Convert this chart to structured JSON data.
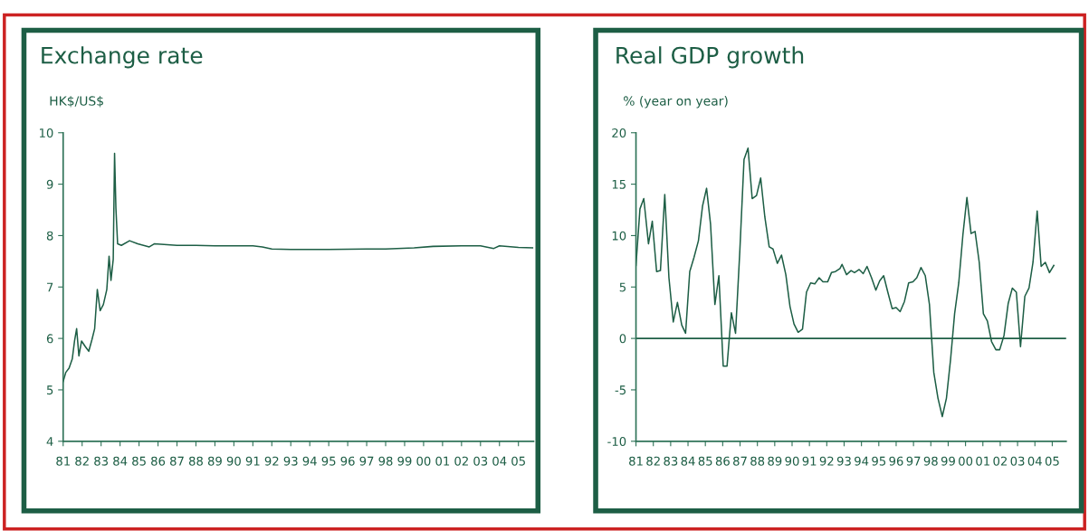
{
  "chart_data": [
    {
      "type": "line",
      "title": "Exchange rate",
      "ylabel": "HK$/US$",
      "xlim": [
        1981,
        2005.8
      ],
      "ylim": [
        4,
        10
      ],
      "yticks": [
        4,
        5,
        6,
        7,
        8,
        9,
        10
      ],
      "xticks": [
        {
          "value": 1981,
          "label": "81"
        },
        {
          "value": 1982,
          "label": "82"
        },
        {
          "value": 1983,
          "label": "83"
        },
        {
          "value": 1984,
          "label": "84"
        },
        {
          "value": 1985,
          "label": "85"
        },
        {
          "value": 1986,
          "label": "86"
        },
        {
          "value": 1987,
          "label": "87"
        },
        {
          "value": 1988,
          "label": "88"
        },
        {
          "value": 1989,
          "label": "89"
        },
        {
          "value": 1990,
          "label": "90"
        },
        {
          "value": 1991,
          "label": "91"
        },
        {
          "value": 1992,
          "label": "92"
        },
        {
          "value": 1993,
          "label": "93"
        },
        {
          "value": 1994,
          "label": "94"
        },
        {
          "value": 1995,
          "label": "95"
        },
        {
          "value": 1996,
          "label": "96"
        },
        {
          "value": 1997,
          "label": "97"
        },
        {
          "value": 1998,
          "label": "98"
        },
        {
          "value": 1999,
          "label": "99"
        },
        {
          "value": 2000,
          "label": "00"
        },
        {
          "value": 2001,
          "label": "01"
        },
        {
          "value": 2002,
          "label": "02"
        },
        {
          "value": 2003,
          "label": "03"
        },
        {
          "value": 2004,
          "label": "04"
        },
        {
          "value": 2005,
          "label": "05"
        }
      ],
      "grid": false,
      "legend": false,
      "marker": "none",
      "line_style": "solid",
      "series": [
        {
          "color": "#1d5e45",
          "x": [
            1981.0,
            1981.14,
            1981.31,
            1981.48,
            1981.6,
            1981.71,
            1981.83,
            1981.97,
            1982.17,
            1982.35,
            1982.52,
            1982.66,
            1982.8,
            1982.95,
            1983.12,
            1983.3,
            1983.42,
            1983.52,
            1983.64,
            1983.71,
            1983.78,
            1983.87,
            1984.07,
            1984.5,
            1984.93,
            1985.54,
            1985.8,
            1987.0,
            1988.0,
            1989.0,
            1990.0,
            1991.0,
            1991.5,
            1992.0,
            1993.0,
            1995.0,
            1997.0,
            1998.0,
            1999.5,
            2000.5,
            2002.0,
            2003.0,
            2003.7,
            2004.0,
            2005.0,
            2005.75
          ],
          "values": [
            5.16,
            5.34,
            5.42,
            5.6,
            5.95,
            6.19,
            5.66,
            5.95,
            5.84,
            5.75,
            5.98,
            6.19,
            6.95,
            6.54,
            6.66,
            6.95,
            7.6,
            7.13,
            7.54,
            9.6,
            8.54,
            7.84,
            7.81,
            7.9,
            7.84,
            7.78,
            7.84,
            7.81,
            7.81,
            7.8,
            7.8,
            7.8,
            7.78,
            7.74,
            7.73,
            7.73,
            7.74,
            7.74,
            7.76,
            7.79,
            7.8,
            7.8,
            7.75,
            7.8,
            7.77,
            7.76
          ]
        }
      ]
    },
    {
      "type": "line",
      "title": "Real GDP growth",
      "ylabel": "% (year on year)",
      "xlim": [
        1981,
        2005.8
      ],
      "ylim": [
        -10,
        20
      ],
      "yticks": [
        -10,
        -5,
        0,
        5,
        10,
        15,
        20
      ],
      "xticks": [
        {
          "value": 1981,
          "label": "81"
        },
        {
          "value": 1982,
          "label": "82"
        },
        {
          "value": 1983,
          "label": "83"
        },
        {
          "value": 1984,
          "label": "84"
        },
        {
          "value": 1985,
          "label": "85"
        },
        {
          "value": 1986,
          "label": "86"
        },
        {
          "value": 1987,
          "label": "87"
        },
        {
          "value": 1988,
          "label": "88"
        },
        {
          "value": 1989,
          "label": "89"
        },
        {
          "value": 1990,
          "label": "90"
        },
        {
          "value": 1991,
          "label": "91"
        },
        {
          "value": 1992,
          "label": "92"
        },
        {
          "value": 1993,
          "label": "93"
        },
        {
          "value": 1994,
          "label": "94"
        },
        {
          "value": 1995,
          "label": "95"
        },
        {
          "value": 1996,
          "label": "96"
        },
        {
          "value": 1997,
          "label": "97"
        },
        {
          "value": 1998,
          "label": "98"
        },
        {
          "value": 1999,
          "label": "99"
        },
        {
          "value": 2000,
          "label": "00"
        },
        {
          "value": 2001,
          "label": "01"
        },
        {
          "value": 2002,
          "label": "02"
        },
        {
          "value": 2003,
          "label": "03"
        },
        {
          "value": 2004,
          "label": "04"
        },
        {
          "value": 2005,
          "label": "05"
        }
      ],
      "grid": false,
      "legend": false,
      "marker": "none",
      "line_style": "solid",
      "ref_lines": [
        {
          "axis": "y",
          "value": 0,
          "label": null,
          "color": "#1d5e45"
        }
      ],
      "series": [
        {
          "color": "#1d5e45",
          "x": [
            1981.0,
            1981.23,
            1981.45,
            1981.72,
            1981.94,
            1982.19,
            1982.41,
            1982.66,
            1982.9,
            1983.15,
            1983.39,
            1983.64,
            1983.86,
            1984.1,
            1984.35,
            1984.6,
            1984.84,
            1985.07,
            1985.3,
            1985.55,
            1985.78,
            1986.03,
            1986.25,
            1986.5,
            1986.74,
            1986.99,
            1987.23,
            1987.46,
            1987.7,
            1987.95,
            1988.19,
            1988.43,
            1988.68,
            1988.9,
            1989.15,
            1989.39,
            1989.64,
            1989.88,
            1990.11,
            1990.35,
            1990.6,
            1990.83,
            1991.07,
            1991.31,
            1991.56,
            1991.78,
            1992.05,
            1992.27,
            1992.5,
            1992.76,
            1992.88,
            1993.14,
            1993.4,
            1993.6,
            1993.87,
            1994.1,
            1994.32,
            1994.58,
            1994.83,
            1995.05,
            1995.28,
            1995.52,
            1995.77,
            1996.0,
            1996.23,
            1996.48,
            1996.72,
            1996.97,
            1997.19,
            1997.43,
            1997.68,
            1997.92,
            1998.17,
            1998.41,
            1998.66,
            1998.9,
            1999.14,
            1999.37,
            1999.61,
            1999.85,
            2000.08,
            2000.32,
            2000.55,
            2000.79,
            2001.03,
            2001.26,
            2001.5,
            2001.75,
            2001.97,
            2002.22,
            2002.46,
            2002.7,
            2002.93,
            2003.17,
            2003.42,
            2003.66,
            2003.89,
            2004.13,
            2004.36,
            2004.6,
            2004.84,
            2005.09
          ],
          "values": [
            7.1,
            12.6,
            13.6,
            9.2,
            11.4,
            6.5,
            6.6,
            14.0,
            5.9,
            1.6,
            3.5,
            1.3,
            0.5,
            6.5,
            7.9,
            9.5,
            12.9,
            14.6,
            11.1,
            3.3,
            6.1,
            -2.7,
            -2.7,
            2.5,
            0.5,
            8.6,
            17.4,
            18.5,
            13.6,
            13.9,
            15.6,
            11.8,
            8.9,
            8.7,
            7.3,
            8.1,
            6.2,
            3.1,
            1.4,
            0.6,
            0.9,
            4.5,
            5.4,
            5.3,
            5.9,
            5.5,
            5.5,
            6.4,
            6.5,
            6.8,
            7.2,
            6.2,
            6.6,
            6.4,
            6.7,
            6.3,
            7.0,
            5.9,
            4.7,
            5.6,
            6.1,
            4.5,
            2.9,
            3.0,
            2.6,
            3.6,
            5.4,
            5.5,
            5.9,
            6.9,
            6.1,
            3.3,
            -3.3,
            -5.8,
            -7.6,
            -5.8,
            -2.0,
            2.4,
            5.4,
            10.1,
            13.7,
            10.2,
            10.4,
            7.4,
            2.4,
            1.7,
            -0.3,
            -1.1,
            -1.1,
            0.3,
            3.4,
            4.9,
            4.5,
            -0.8,
            4.1,
            4.9,
            7.4,
            12.4,
            7.0,
            7.4,
            6.4,
            7.1
          ]
        }
      ]
    }
  ]
}
